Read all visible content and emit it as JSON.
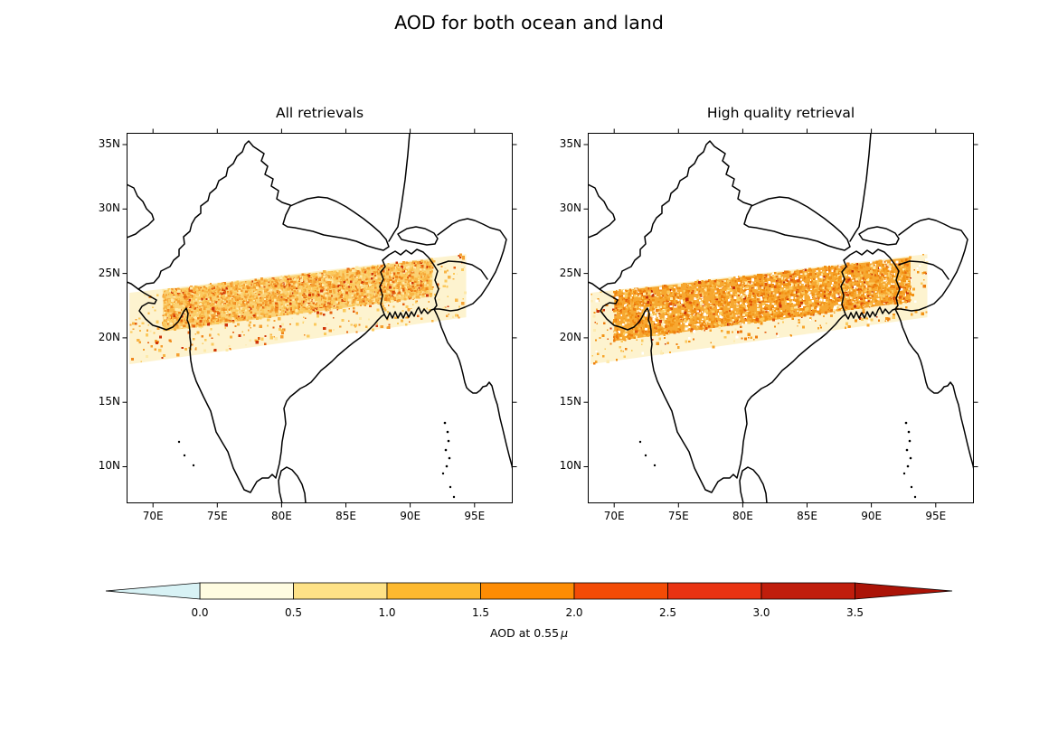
{
  "figure": {
    "title": "AOD for both ocean and land"
  },
  "chart_data": {
    "type": "heatmap",
    "subtype": "satellite-swath-map",
    "projection": "PlateCarree",
    "lon_range": [
      67.95,
      97.97
    ],
    "lat_range": [
      7.16,
      35.91
    ],
    "grid": false,
    "xticks": {
      "values": [
        70,
        75,
        80,
        85,
        90,
        95
      ],
      "labels": [
        "70E",
        "75E",
        "80E",
        "85E",
        "90E",
        "95E"
      ]
    },
    "yticks": {
      "values": [
        35,
        30,
        25,
        20,
        15,
        10
      ],
      "labels": [
        "35N",
        "30N",
        "25N",
        "20N",
        "15N",
        "10N"
      ]
    },
    "panels": [
      {
        "title": "All retrievals",
        "swath": {
          "quad_lonlat": [
            [
              68.17,
              23.5
            ],
            [
              94.35,
              26.5
            ],
            [
              94.35,
              21.6
            ],
            [
              68.17,
              17.95
            ]
          ],
          "base_color": "#fdf3cf",
          "core_color": "#fad174",
          "core_u": [
            0.1,
            0.9
          ],
          "core_v": [
            0.02,
            0.6
          ],
          "speckle_count": 2800,
          "speckle_seed": 11,
          "palette": [
            [
              "#fbc95c",
              26
            ],
            [
              "#f8b545",
              22
            ],
            [
              "#f5a032",
              18
            ],
            [
              "#f0871c",
              12
            ],
            [
              "#fde9a8",
              12
            ],
            [
              "#e55f0e",
              6
            ],
            [
              "#d03408",
              4
            ]
          ]
        }
      },
      {
        "title": "High quality retrieval",
        "swath": {
          "quad_lonlat": [
            [
              68.17,
              23.5
            ],
            [
              94.35,
              26.5
            ],
            [
              94.35,
              21.6
            ],
            [
              68.17,
              17.95
            ]
          ],
          "base_color": "#fdf3cf",
          "core_color": "#f6a832",
          "core_u": [
            0.07,
            0.95
          ],
          "core_v": [
            0.02,
            0.72
          ],
          "speckle_count": 3200,
          "speckle_seed": 29,
          "palette": [
            [
              "#f7a62e",
              24
            ],
            [
              "#f29214",
              22
            ],
            [
              "#ed7d0e",
              14
            ],
            [
              "#fbc95c",
              14
            ],
            [
              "#fdeaae",
              8
            ],
            [
              "#ffffff",
              10
            ],
            [
              "#e25708",
              5
            ],
            [
              "#c62f07",
              3
            ]
          ]
        }
      }
    ],
    "colorbar": {
      "orientation": "horizontal",
      "extend": "both",
      "label_prefix": "AOD at 0.55",
      "label_mu": "μ",
      "tick_labels": [
        "0.0",
        "0.5",
        "1.0",
        "1.5",
        "2.0",
        "2.5",
        "3.0",
        "3.5"
      ],
      "tick_values": [
        0,
        0.5,
        1,
        1.5,
        2,
        2.5,
        3,
        3.5
      ],
      "segment_colors": [
        "#fffce1",
        "#fee287",
        "#fdb92f",
        "#fd8c04",
        "#f34b06",
        "#e93312",
        "#c01d0c"
      ],
      "under_color": "#d8f2f5",
      "over_color": "#ab1307"
    }
  }
}
